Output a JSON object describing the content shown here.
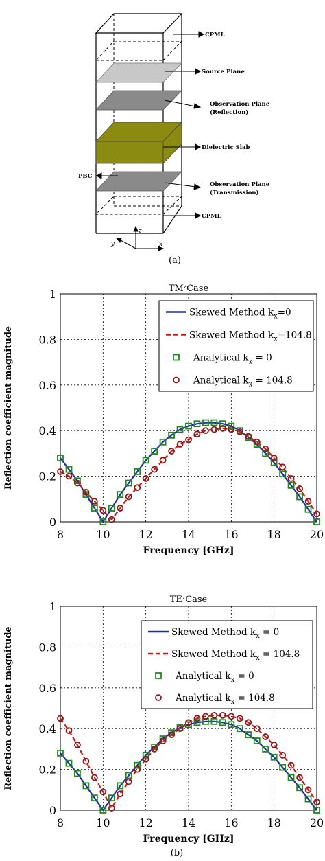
{
  "diagram": {
    "labels": {
      "cpml_top": "CPML",
      "source_plane": "Source Plane",
      "obs_reflection_1": "Observation Plane",
      "obs_reflection_2": "(Reflection)",
      "dielectric_slab": "Dielectric Slab",
      "pbc": "PBC",
      "obs_transmission_1": "Observation Plane",
      "obs_transmission_2": "(Transmission)",
      "cpml_bottom": "CPML",
      "axis_x": "x",
      "axis_y": "y",
      "axis_z": "z"
    },
    "caption": "(a)",
    "colors": {
      "source_plane": "#c8c8c8",
      "observation_plane": "#8a8a8a",
      "dielectric_slab": "#8b8b12"
    }
  },
  "bottom_caption": "(b)",
  "chart_data": [
    {
      "type": "line",
      "title": "TMᶻCase",
      "xlabel": "Frequency [GHz]",
      "ylabel": "Reflection coefficient magnitude",
      "xlim": [
        8,
        20
      ],
      "ylim": [
        0,
        1
      ],
      "xticks": [
        "8",
        "10",
        "12",
        "14",
        "16",
        "18",
        "20"
      ],
      "yticks": [
        "0",
        "0.2",
        "0.4",
        "0.6",
        "0.8",
        "1"
      ],
      "grid": true,
      "legend_position": "top-right",
      "series": [
        {
          "name": "Skewed Method k",
          "sub": "x",
          "suffix": "=0",
          "kind": "line",
          "style": "solid",
          "color": "#1f2fa8",
          "x": [
            8,
            8.4,
            8.8,
            9.2,
            9.6,
            10,
            10.4,
            10.8,
            11.2,
            11.6,
            12,
            12.4,
            12.8,
            13.2,
            13.6,
            14,
            14.4,
            14.8,
            15.2,
            15.6,
            16,
            16.4,
            16.8,
            17.2,
            17.6,
            18,
            18.4,
            18.8,
            19.2,
            19.6,
            20
          ],
          "y": [
            0.28,
            0.23,
            0.18,
            0.12,
            0.06,
            0.0,
            0.06,
            0.12,
            0.17,
            0.22,
            0.27,
            0.31,
            0.35,
            0.38,
            0.405,
            0.42,
            0.43,
            0.435,
            0.435,
            0.43,
            0.42,
            0.4,
            0.37,
            0.34,
            0.3,
            0.26,
            0.21,
            0.16,
            0.11,
            0.055,
            0.0
          ]
        },
        {
          "name": "Skewed Method k",
          "sub": "x",
          "suffix": "=104.8",
          "kind": "line",
          "style": "dashed",
          "color": "#d01818",
          "x": [
            8,
            8.4,
            8.8,
            9.2,
            9.6,
            10,
            10.4,
            10.8,
            11.2,
            11.6,
            12,
            12.4,
            12.8,
            13.2,
            13.6,
            14,
            14.4,
            14.8,
            15.2,
            15.6,
            16,
            16.4,
            16.8,
            17.2,
            17.6,
            18,
            18.4,
            18.8,
            19.2,
            19.6,
            20
          ],
          "y": [
            0.22,
            0.2,
            0.17,
            0.13,
            0.09,
            0.05,
            0.01,
            0.06,
            0.11,
            0.15,
            0.19,
            0.23,
            0.27,
            0.31,
            0.34,
            0.36,
            0.385,
            0.4,
            0.405,
            0.41,
            0.405,
            0.395,
            0.375,
            0.35,
            0.32,
            0.28,
            0.24,
            0.19,
            0.145,
            0.09,
            0.035
          ]
        },
        {
          "name": "Analytical k",
          "sub": "x",
          "suffix": " = 0",
          "kind": "marker",
          "marker": "square",
          "color": "#1e8a1e",
          "x": [
            8,
            8.4,
            8.8,
            9.2,
            9.6,
            10,
            10.4,
            10.8,
            11.2,
            11.6,
            12,
            12.4,
            12.8,
            13.2,
            13.6,
            14,
            14.4,
            14.8,
            15.2,
            15.6,
            16,
            16.4,
            16.8,
            17.2,
            17.6,
            18,
            18.4,
            18.8,
            19.2,
            19.6,
            20
          ],
          "y": [
            0.28,
            0.23,
            0.18,
            0.12,
            0.06,
            0.0,
            0.06,
            0.12,
            0.17,
            0.22,
            0.27,
            0.31,
            0.35,
            0.38,
            0.405,
            0.42,
            0.43,
            0.435,
            0.435,
            0.43,
            0.42,
            0.4,
            0.37,
            0.34,
            0.3,
            0.26,
            0.21,
            0.16,
            0.11,
            0.055,
            0.0
          ]
        },
        {
          "name": "Analytical k",
          "sub": "x",
          "suffix": " = 104.8",
          "kind": "marker",
          "marker": "circle",
          "color": "#8b1a1a",
          "x": [
            8,
            8.4,
            8.8,
            9.2,
            9.6,
            10,
            10.4,
            10.8,
            11.2,
            11.6,
            12,
            12.4,
            12.8,
            13.2,
            13.6,
            14,
            14.4,
            14.8,
            15.2,
            15.6,
            16,
            16.4,
            16.8,
            17.2,
            17.6,
            18,
            18.4,
            18.8,
            19.2,
            19.6,
            20
          ],
          "y": [
            0.22,
            0.2,
            0.17,
            0.13,
            0.09,
            0.05,
            0.01,
            0.06,
            0.11,
            0.15,
            0.19,
            0.23,
            0.27,
            0.31,
            0.34,
            0.36,
            0.385,
            0.4,
            0.405,
            0.41,
            0.405,
            0.395,
            0.375,
            0.35,
            0.32,
            0.28,
            0.24,
            0.19,
            0.145,
            0.09,
            0.035
          ]
        }
      ]
    },
    {
      "type": "line",
      "title": "TEᶻCase",
      "xlabel": "Frequency [GHz]",
      "ylabel": "Reflection coefficient magnitude",
      "xlim": [
        8,
        20
      ],
      "ylim": [
        0,
        1
      ],
      "xticks": [
        "8",
        "10",
        "12",
        "14",
        "16",
        "18",
        "20"
      ],
      "yticks": [
        "0",
        "0.2",
        "0.4",
        "0.6",
        "0.8",
        "1"
      ],
      "grid": true,
      "legend_position": "top-right",
      "series": [
        {
          "name": "Skewed Method k",
          "sub": "x",
          "suffix": " = 0",
          "kind": "line",
          "style": "solid",
          "color": "#1f2fa8",
          "x": [
            8,
            8.4,
            8.8,
            9.2,
            9.6,
            10,
            10.4,
            10.8,
            11.2,
            11.6,
            12,
            12.4,
            12.8,
            13.2,
            13.6,
            14,
            14.4,
            14.8,
            15.2,
            15.6,
            16,
            16.4,
            16.8,
            17.2,
            17.6,
            18,
            18.4,
            18.8,
            19.2,
            19.6,
            20
          ],
          "y": [
            0.28,
            0.23,
            0.18,
            0.12,
            0.06,
            0.0,
            0.06,
            0.12,
            0.17,
            0.22,
            0.27,
            0.31,
            0.35,
            0.38,
            0.405,
            0.42,
            0.43,
            0.435,
            0.435,
            0.43,
            0.42,
            0.4,
            0.37,
            0.34,
            0.3,
            0.26,
            0.21,
            0.16,
            0.11,
            0.055,
            0.0
          ]
        },
        {
          "name": "Skewed Method k",
          "sub": "x",
          "suffix": " = 104.8",
          "kind": "line",
          "style": "dashed",
          "color": "#d01818",
          "x": [
            8,
            8.4,
            8.8,
            9.2,
            9.6,
            10,
            10.4,
            10.8,
            11.2,
            11.6,
            12,
            12.4,
            12.8,
            13.2,
            13.6,
            14,
            14.4,
            14.8,
            15.2,
            15.6,
            16,
            16.4,
            16.8,
            17.2,
            17.6,
            18,
            18.4,
            18.8,
            19.2,
            19.6,
            20
          ],
          "y": [
            0.45,
            0.39,
            0.32,
            0.24,
            0.16,
            0.09,
            0.01,
            0.08,
            0.14,
            0.2,
            0.25,
            0.3,
            0.34,
            0.37,
            0.4,
            0.43,
            0.45,
            0.46,
            0.465,
            0.465,
            0.46,
            0.45,
            0.43,
            0.4,
            0.36,
            0.32,
            0.27,
            0.22,
            0.16,
            0.1,
            0.04
          ]
        },
        {
          "name": "Analytical k",
          "sub": "x",
          "suffix": " = 0",
          "kind": "marker",
          "marker": "square",
          "color": "#1e8a1e",
          "x": [
            8,
            8.4,
            8.8,
            9.2,
            9.6,
            10,
            10.4,
            10.8,
            11.2,
            11.6,
            12,
            12.4,
            12.8,
            13.2,
            13.6,
            14,
            14.4,
            14.8,
            15.2,
            15.6,
            16,
            16.4,
            16.8,
            17.2,
            17.6,
            18,
            18.4,
            18.8,
            19.2,
            19.6,
            20
          ],
          "y": [
            0.28,
            0.23,
            0.18,
            0.12,
            0.06,
            0.0,
            0.06,
            0.12,
            0.17,
            0.22,
            0.27,
            0.31,
            0.35,
            0.38,
            0.405,
            0.42,
            0.43,
            0.435,
            0.435,
            0.43,
            0.42,
            0.4,
            0.37,
            0.34,
            0.3,
            0.26,
            0.21,
            0.16,
            0.11,
            0.055,
            0.0
          ]
        },
        {
          "name": "Analytical k",
          "sub": "x",
          "suffix": " = 104.8",
          "kind": "marker",
          "marker": "circle",
          "color": "#8b1a1a",
          "x": [
            8,
            8.4,
            8.8,
            9.2,
            9.6,
            10,
            10.4,
            10.8,
            11.2,
            11.6,
            12,
            12.4,
            12.8,
            13.2,
            13.6,
            14,
            14.4,
            14.8,
            15.2,
            15.6,
            16,
            16.4,
            16.8,
            17.2,
            17.6,
            18,
            18.4,
            18.8,
            19.2,
            19.6,
            20
          ],
          "y": [
            0.45,
            0.39,
            0.32,
            0.24,
            0.16,
            0.09,
            0.01,
            0.08,
            0.14,
            0.2,
            0.25,
            0.3,
            0.34,
            0.37,
            0.4,
            0.43,
            0.45,
            0.46,
            0.465,
            0.465,
            0.46,
            0.45,
            0.43,
            0.4,
            0.36,
            0.32,
            0.27,
            0.22,
            0.16,
            0.1,
            0.04
          ]
        }
      ]
    }
  ]
}
